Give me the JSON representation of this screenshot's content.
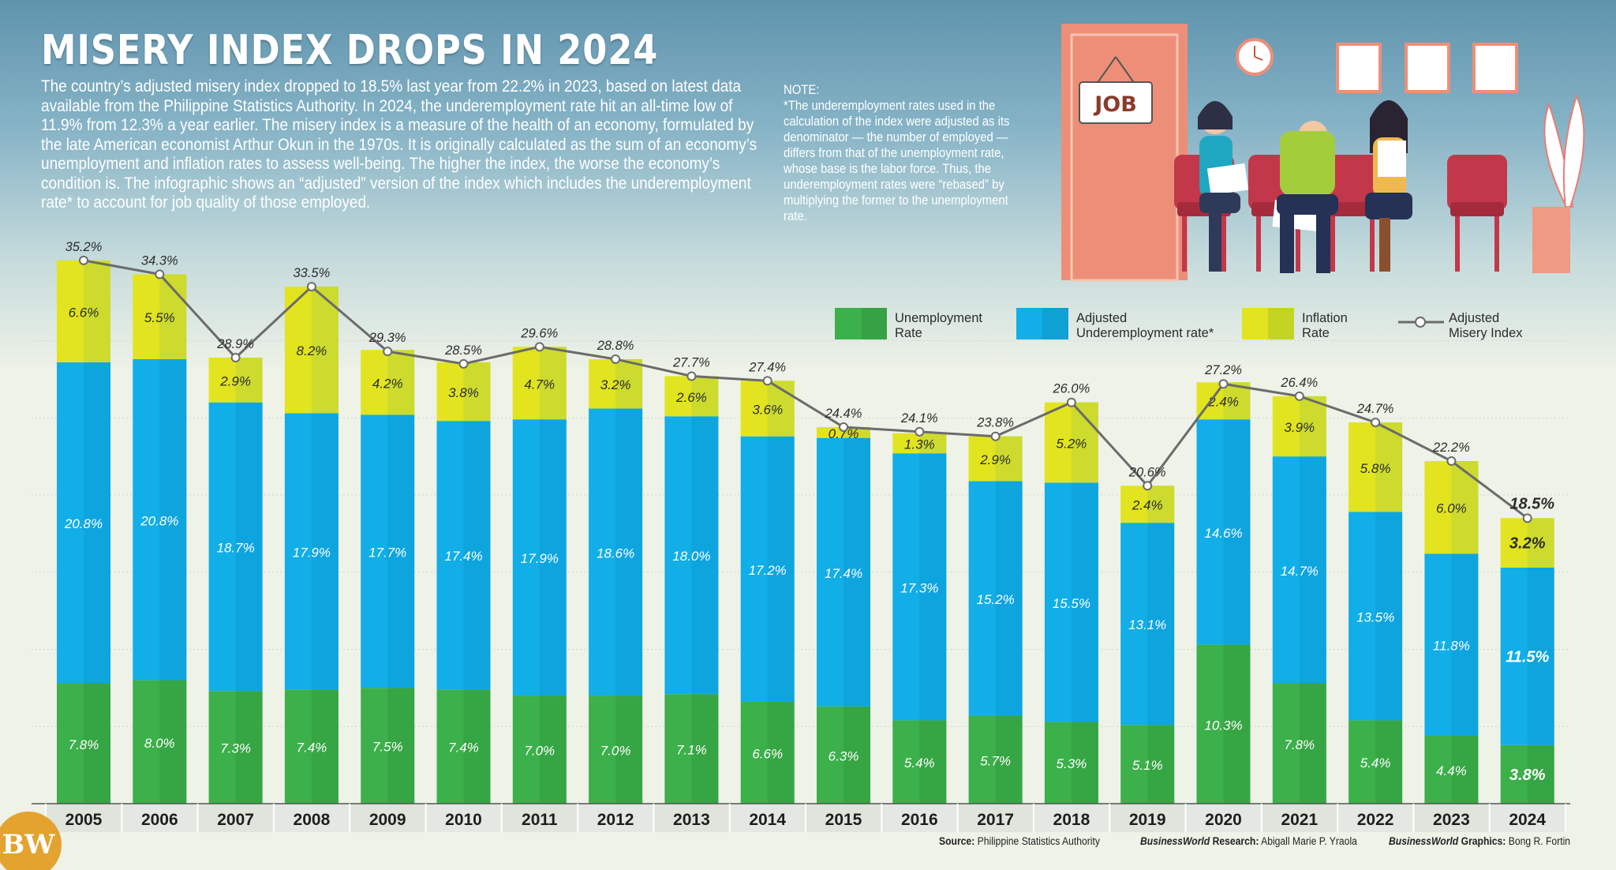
{
  "header": {
    "title": "MISERY INDEX DROPS IN 2024",
    "intro": "The country’s adjusted misery index dropped to 18.5% last year from 22.2% in 2023, based on latest data available from the Philippine Statistics Authority. In 2024, the underemployment rate hit an all-time low of 11.9% from 12.3% a year earlier. The misery index is a measure of the health of an economy, formulated by the late American economist Arthur Okun in the 1970s. It is originally calculated as the sum of an economy’s unemployment and inflation rates to assess well-being. The higher the index, the worse the economy’s condition is. The infographic shows an “adjusted” version of the index which includes the underemployment rate* to account for job quality of those employed."
  },
  "note": {
    "heading": "NOTE:",
    "text": "*The underemployment rates used in the calculation of the index were adjusted as its denominator — the number of employed — differs from that of the unemployment rate, whose base is the labor force. Thus, the underemployment rates were “rebased” by multiplying the former to the unemployment rate."
  },
  "illustration": {
    "sign": "JOB"
  },
  "colors": {
    "unemployment": "#3cb04a",
    "underemployment": "#11aee7",
    "inflation": "#e2e41f",
    "line": "#6b6b6b"
  },
  "chart_data": {
    "type": "bar",
    "stacked": true,
    "categories": [
      "2005",
      "2006",
      "2007",
      "2008",
      "2009",
      "2010",
      "2011",
      "2012",
      "2013",
      "2014",
      "2015",
      "2016",
      "2017",
      "2018",
      "2019",
      "2020",
      "2021",
      "2022",
      "2023",
      "2024"
    ],
    "series": [
      {
        "name": "Unemployment Rate",
        "values": [
          7.8,
          8.0,
          7.3,
          7.4,
          7.5,
          7.4,
          7.0,
          7.0,
          7.1,
          6.6,
          6.3,
          5.4,
          5.7,
          5.3,
          5.1,
          10.3,
          7.8,
          5.4,
          4.4,
          3.8
        ]
      },
      {
        "name": "Adjusted Underemployment rate*",
        "values": [
          20.8,
          20.8,
          18.7,
          17.9,
          17.7,
          17.4,
          17.9,
          18.6,
          18.0,
          17.2,
          17.4,
          17.3,
          15.2,
          15.5,
          13.1,
          14.6,
          14.7,
          13.5,
          11.8,
          11.5
        ]
      },
      {
        "name": "Inflation Rate",
        "values": [
          6.6,
          5.5,
          2.9,
          8.2,
          4.2,
          3.8,
          4.7,
          3.2,
          2.6,
          3.6,
          0.7,
          1.3,
          2.9,
          5.2,
          2.4,
          2.4,
          3.9,
          5.8,
          6.0,
          3.2
        ]
      }
    ],
    "line": {
      "name": "Adjusted Misery Index",
      "values": [
        35.2,
        34.3,
        28.9,
        33.5,
        29.3,
        28.5,
        29.6,
        28.8,
        27.7,
        27.4,
        24.4,
        24.1,
        23.8,
        26.0,
        20.6,
        27.2,
        26.4,
        24.7,
        22.2,
        18.5
      ]
    },
    "legend": [
      {
        "label1": "Unemployment",
        "label2": "Rate"
      },
      {
        "label1": "Adjusted",
        "label2": "Underemployment rate*"
      },
      {
        "label1": "Inflation",
        "label2": "Rate"
      },
      {
        "label1": "Adjusted",
        "label2": "Misery Index"
      }
    ],
    "legend_position": "top-right",
    "ylim": [
      0,
      36
    ],
    "grid": true
  },
  "footer": {
    "source_label": "Source:",
    "source": "Philippine Statistics Authority",
    "research_pub": "BusinessWorld",
    "research_label": "Research:",
    "research_name": "Abigall Marie P. Yraola",
    "graphics_pub": "BusinessWorld",
    "graphics_label": "Graphics:",
    "graphics_name": "Bong R. Fortin"
  },
  "logo": "BW"
}
